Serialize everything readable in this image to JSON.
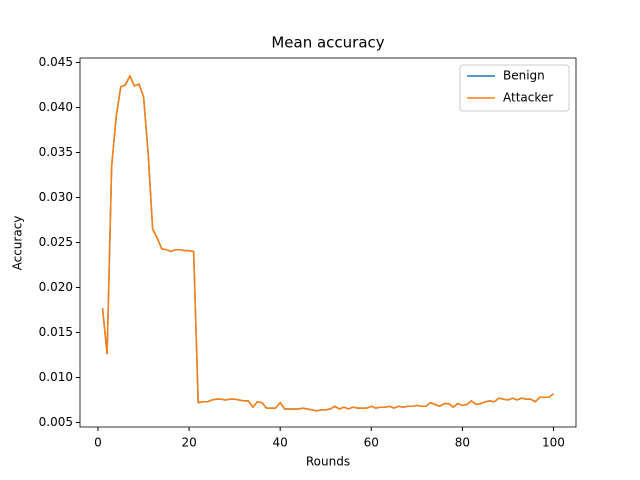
{
  "chart_data": {
    "type": "line",
    "title": "Mean accuracy",
    "x_label": "Rounds",
    "y_label": "Accuracy",
    "x": [
      1,
      2,
      3,
      4,
      5,
      6,
      7,
      8,
      9,
      10,
      11,
      12,
      13,
      14,
      15,
      16,
      17,
      18,
      19,
      20,
      21,
      22,
      23,
      24,
      25,
      26,
      27,
      28,
      29,
      30,
      31,
      32,
      33,
      34,
      35,
      36,
      37,
      38,
      39,
      40,
      41,
      42,
      43,
      44,
      45,
      46,
      47,
      48,
      49,
      50,
      51,
      52,
      53,
      54,
      55,
      56,
      57,
      58,
      59,
      60,
      61,
      62,
      63,
      64,
      65,
      66,
      67,
      68,
      69,
      70,
      71,
      72,
      73,
      74,
      75,
      76,
      77,
      78,
      79,
      80,
      81,
      82,
      83,
      84,
      85,
      86,
      87,
      88,
      89,
      90,
      91,
      92,
      93,
      94,
      95,
      96,
      97,
      98,
      99,
      100
    ],
    "series": [
      {
        "name": "Benign",
        "color": "#1f77b4",
        "values": [
          0.0177,
          0.0126,
          0.0335,
          0.039,
          0.0423,
          0.0425,
          0.0435,
          0.0424,
          0.0426,
          0.0412,
          0.035,
          0.0265,
          0.0255,
          0.0243,
          0.0242,
          0.024,
          0.0242,
          0.0242,
          0.0241,
          0.0241,
          0.024,
          0.0072,
          0.0073,
          0.0073,
          0.0075,
          0.0076,
          0.0076,
          0.0075,
          0.0076,
          0.0076,
          0.0075,
          0.0074,
          0.0074,
          0.0067,
          0.0073,
          0.0072,
          0.0066,
          0.0066,
          0.0066,
          0.0072,
          0.0065,
          0.0065,
          0.0065,
          0.0065,
          0.0066,
          0.0065,
          0.0064,
          0.0063,
          0.0064,
          0.0064,
          0.0065,
          0.0068,
          0.0065,
          0.0067,
          0.0065,
          0.0067,
          0.0066,
          0.0066,
          0.0066,
          0.0068,
          0.0066,
          0.0067,
          0.0067,
          0.0068,
          0.0066,
          0.0068,
          0.0067,
          0.0068,
          0.0068,
          0.0069,
          0.0068,
          0.0068,
          0.0072,
          0.007,
          0.0068,
          0.0071,
          0.0071,
          0.0067,
          0.0071,
          0.0069,
          0.007,
          0.0074,
          0.007,
          0.0071,
          0.0073,
          0.0074,
          0.0073,
          0.0077,
          0.0076,
          0.0075,
          0.0077,
          0.0075,
          0.0077,
          0.0076,
          0.0076,
          0.0073,
          0.0078,
          0.0078,
          0.0078,
          0.0082
        ]
      },
      {
        "name": "Attacker",
        "color": "#ff7f0e",
        "values": [
          0.0177,
          0.0126,
          0.0335,
          0.039,
          0.0423,
          0.0425,
          0.0435,
          0.0424,
          0.0426,
          0.0412,
          0.035,
          0.0265,
          0.0255,
          0.0243,
          0.0242,
          0.024,
          0.0242,
          0.0242,
          0.0241,
          0.0241,
          0.024,
          0.0072,
          0.0073,
          0.0073,
          0.0075,
          0.0076,
          0.0076,
          0.0075,
          0.0076,
          0.0076,
          0.0075,
          0.0074,
          0.0074,
          0.0067,
          0.0073,
          0.0072,
          0.0066,
          0.0066,
          0.0066,
          0.0072,
          0.0065,
          0.0065,
          0.0065,
          0.0065,
          0.0066,
          0.0065,
          0.0064,
          0.0063,
          0.0064,
          0.0064,
          0.0065,
          0.0068,
          0.0065,
          0.0067,
          0.0065,
          0.0067,
          0.0066,
          0.0066,
          0.0066,
          0.0068,
          0.0066,
          0.0067,
          0.0067,
          0.0068,
          0.0066,
          0.0068,
          0.0067,
          0.0068,
          0.0068,
          0.0069,
          0.0068,
          0.0068,
          0.0072,
          0.007,
          0.0068,
          0.0071,
          0.0071,
          0.0067,
          0.0071,
          0.0069,
          0.007,
          0.0074,
          0.007,
          0.0071,
          0.0073,
          0.0074,
          0.0073,
          0.0077,
          0.0076,
          0.0075,
          0.0077,
          0.0075,
          0.0077,
          0.0076,
          0.0076,
          0.0073,
          0.0078,
          0.0078,
          0.0078,
          0.0082
        ]
      }
    ],
    "xlim": [
      -3.95,
      104.95
    ],
    "xticks": [
      0,
      20,
      40,
      60,
      80,
      100
    ],
    "ylim": [
      0.0045,
      0.0455
    ],
    "yticks": [
      0.005,
      {
        "value": 0.01,
        "label": "0.010"
      },
      0.015,
      {
        "value": 0.02,
        "label": "0.020"
      },
      0.025,
      {
        "value": 0.03,
        "label": "0.030"
      },
      0.035,
      {
        "value": 0.04,
        "label": "0.040"
      },
      0.045
    ],
    "legend": "upper right"
  }
}
